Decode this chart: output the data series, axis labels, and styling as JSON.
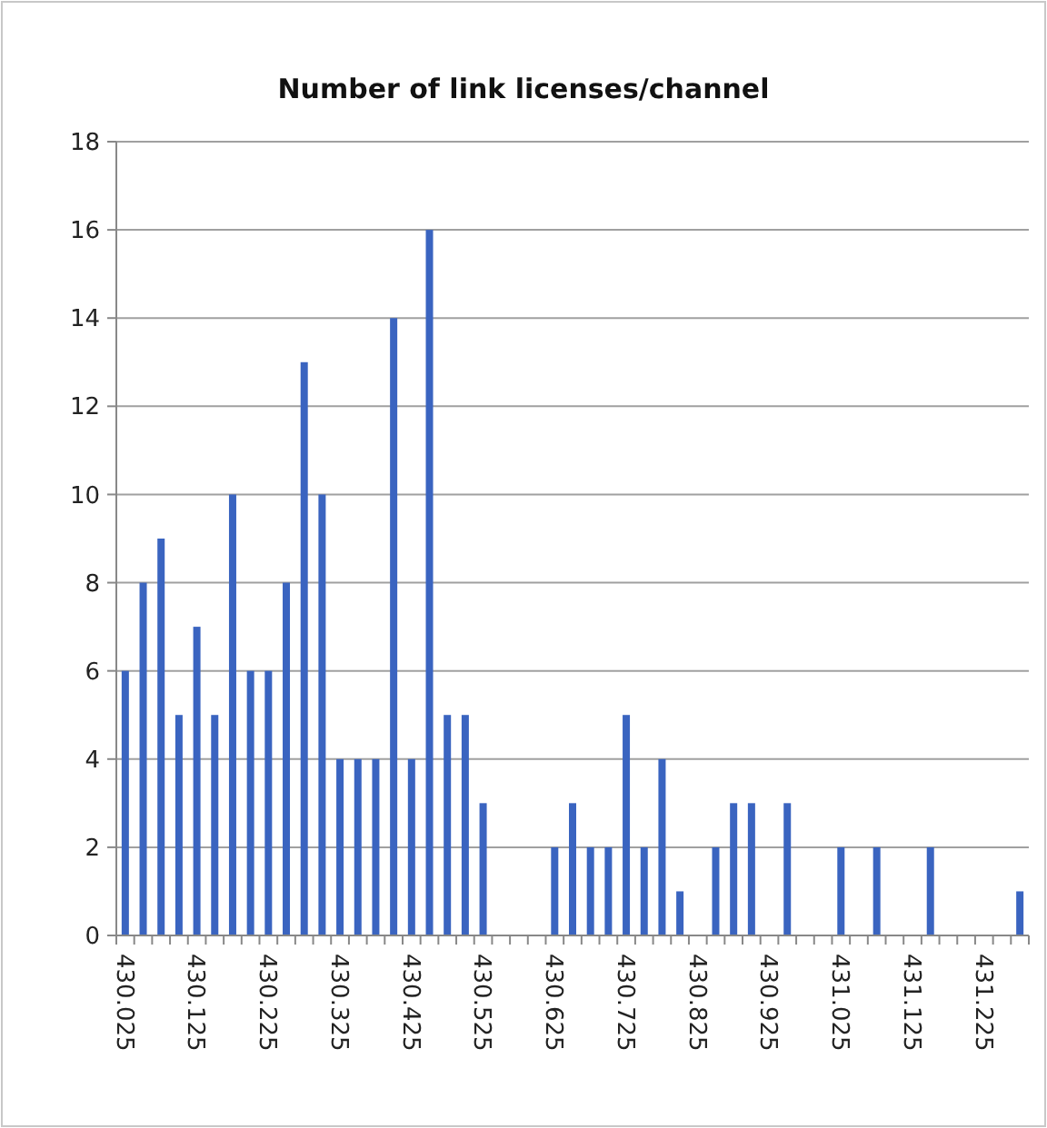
{
  "chart_data": {
    "type": "bar",
    "title": "Number of link licenses/channel",
    "categories": [
      "430.025",
      null,
      null,
      null,
      "430.125",
      null,
      null,
      null,
      "430.225",
      null,
      null,
      null,
      "430.325",
      null,
      null,
      null,
      "430.425",
      null,
      null,
      null,
      "430.525",
      null,
      null,
      null,
      "430.625",
      null,
      null,
      null,
      "430.725",
      null,
      null,
      null,
      "430.825",
      null,
      null,
      null,
      "430.925",
      null,
      null,
      null,
      "431.025",
      null,
      null,
      null,
      "431.125",
      null,
      null,
      null,
      "431.225",
      null,
      null
    ],
    "values": [
      6,
      8,
      9,
      5,
      7,
      5,
      10,
      6,
      6,
      8,
      13,
      10,
      4,
      4,
      4,
      14,
      4,
      16,
      5,
      5,
      3,
      0,
      0,
      0,
      2,
      3,
      2,
      2,
      5,
      2,
      4,
      1,
      0,
      2,
      3,
      3,
      0,
      3,
      0,
      0,
      2,
      0,
      2,
      0,
      0,
      2,
      0,
      0,
      0,
      0,
      1
    ],
    "color": "#3a64c0",
    "ylim": [
      0,
      18
    ],
    "yticks": [
      0,
      2,
      4,
      6,
      8,
      10,
      12,
      14,
      16,
      18
    ],
    "grid": "y"
  }
}
